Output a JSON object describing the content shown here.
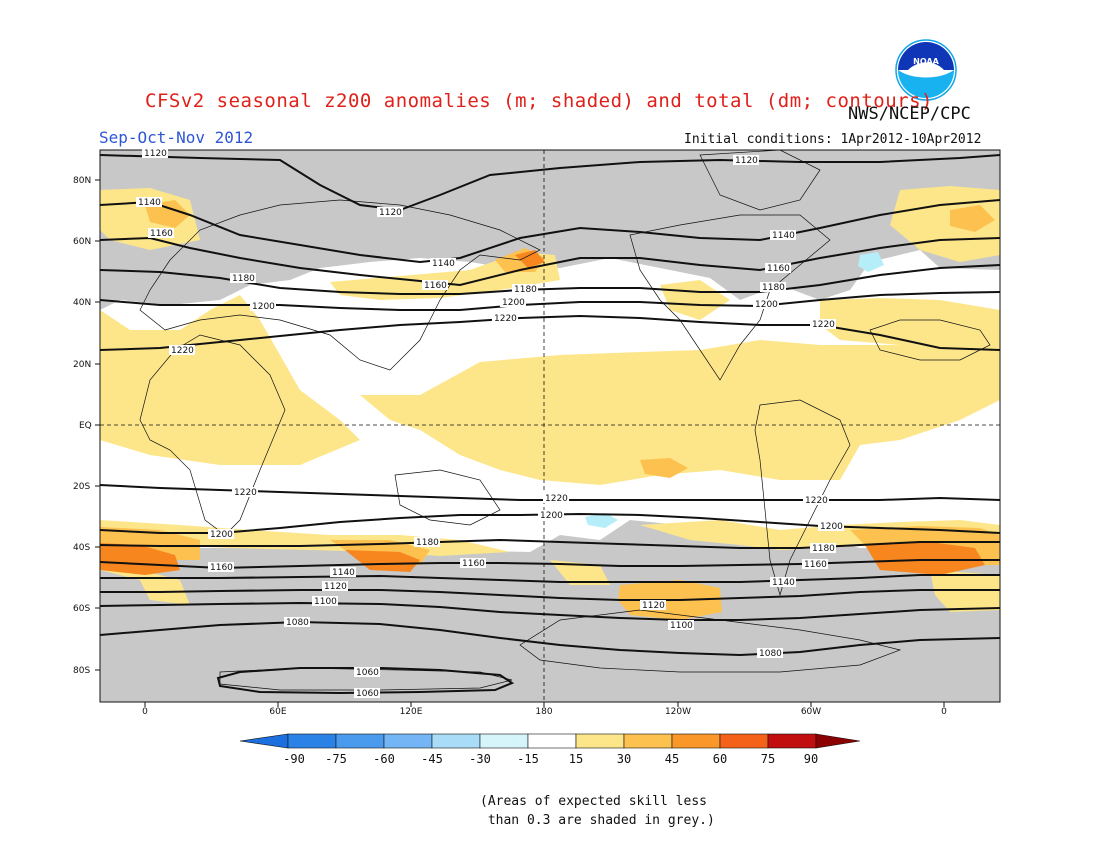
{
  "header": {
    "title": "CFSv2 seasonal z200 anomalies (m; shaded) and total (dm; contours)",
    "agency": "NWS/NCEP/CPC",
    "season": "Sep-Oct-Nov 2012",
    "initial_conditions": "Initial conditions: 1Apr2012-10Apr2012"
  },
  "logo": {
    "text": "NOAA"
  },
  "map": {
    "lat_labels": [
      "80N",
      "60N",
      "40N",
      "20N",
      "EQ",
      "20S",
      "40S",
      "60S",
      "80S"
    ],
    "lon_labels": [
      "0",
      "60E",
      "120E",
      "180",
      "120W",
      "60W",
      "0"
    ],
    "contour_labels": [
      "1120",
      "1140",
      "1160",
      "1180",
      "1200",
      "1220",
      "1100",
      "1080",
      "1060"
    ],
    "colors": {
      "skill_grey": "#c8c8c8",
      "light_yellow": "#fde68a",
      "yellow_orange": "#fdc14f",
      "orange": "#f7861f",
      "red_orange": "#f24f12",
      "light_blue": "#b5eef8"
    }
  },
  "colorbar": {
    "ticks": [
      "-90",
      "-75",
      "-60",
      "-45",
      "-30",
      "-15",
      "15",
      "30",
      "45",
      "60",
      "75",
      "90"
    ],
    "colors": [
      "#1c6fde",
      "#2b82e6",
      "#4a9bee",
      "#73b5f5",
      "#a8dcf7",
      "#d6f5fa",
      "#ffffff",
      "#fde68a",
      "#fdc14f",
      "#f9972a",
      "#f4621a",
      "#e9291a",
      "#c10e0e",
      "#8b0000"
    ]
  },
  "note": "(Areas of expected skill less\n than 0.3 are shaded in grey.)"
}
